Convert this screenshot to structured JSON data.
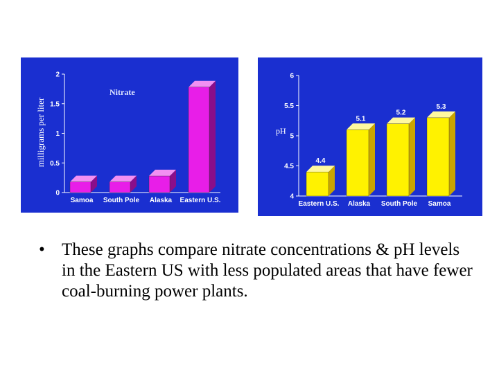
{
  "chart_data": [
    {
      "type": "bar",
      "title": "Nitrate",
      "ylabel": "milligrams per liter",
      "xlabel": "",
      "categories": [
        "Samoa",
        "South Pole",
        "Alaska",
        "Eastern U.S."
      ],
      "values": [
        0.18,
        0.18,
        0.28,
        1.78
      ],
      "ylim": [
        0,
        2
      ],
      "yticks": [
        "0",
        "0.5",
        "1",
        "1.5",
        "2"
      ],
      "grid": false,
      "colors": {
        "background": "#1a2fd0",
        "bar": "#e81ee8",
        "bar_side": "#8a0e8a",
        "bar_top": "#f290f2",
        "text": "#ffffff",
        "title": "#dfe6ff"
      }
    },
    {
      "type": "bar",
      "title": "",
      "ylabel": "pH",
      "xlabel": "",
      "categories": [
        "Eastern U.S.",
        "Alaska",
        "South Pole",
        "Samoa"
      ],
      "values": [
        4.4,
        5.1,
        5.2,
        5.3
      ],
      "data_labels": [
        "4.4",
        "5.1",
        "5.2",
        "5.3"
      ],
      "ylim": [
        4,
        6
      ],
      "yticks": [
        "4",
        "4.5",
        "5",
        "5.5",
        "6"
      ],
      "grid": false,
      "colors": {
        "background": "#1a2fd0",
        "bar": "#fff200",
        "bar_side": "#c9a400",
        "bar_top": "#fff9a0",
        "text": "#ffffff",
        "label": "#ffffff"
      }
    }
  ],
  "caption": {
    "bullet": "•",
    "text": "These graphs compare nitrate concentrations & pH levels in the Eastern US with less populated areas that have fewer coal-burning power plants."
  }
}
